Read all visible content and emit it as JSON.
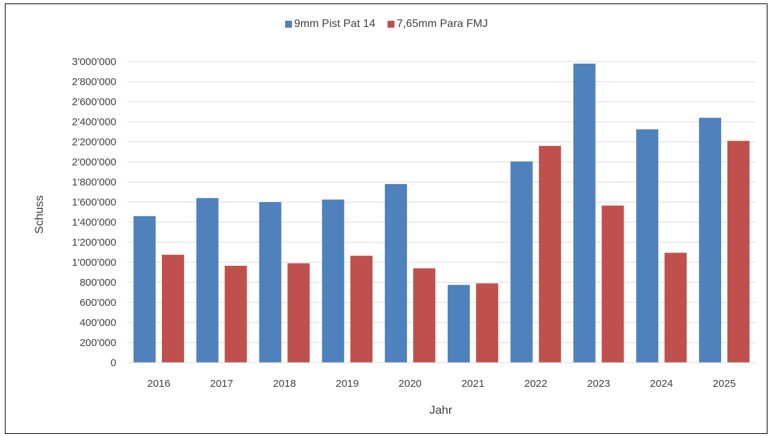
{
  "chart_data": {
    "type": "bar",
    "categories": [
      "2016",
      "2017",
      "2018",
      "2019",
      "2020",
      "2021",
      "2022",
      "2023",
      "2024",
      "2025"
    ],
    "series": [
      {
        "name": "9mm Pist Pat 14",
        "color": "#4f81bd",
        "values": [
          1460000,
          1640000,
          1600000,
          1625000,
          1780000,
          775000,
          2005000,
          2980000,
          2325000,
          2440000
        ]
      },
      {
        "name": "7,65mm Para FMJ",
        "color": "#c0504d",
        "values": [
          1075000,
          965000,
          990000,
          1065000,
          940000,
          790000,
          2160000,
          1565000,
          1095000,
          2210000
        ]
      }
    ],
    "title": "",
    "xlabel": "Jahr",
    "ylabel": "Schuss",
    "ylim": [
      0,
      3000000
    ],
    "yticks": [
      0,
      200000,
      400000,
      600000,
      800000,
      1000000,
      1200000,
      1400000,
      1600000,
      1800000,
      2000000,
      2200000,
      2400000,
      2600000,
      2800000,
      3000000
    ],
    "ytick_labels": [
      "0",
      "200'000",
      "400'000",
      "600'000",
      "800'000",
      "1'000'000",
      "1'200'000",
      "1'400'000",
      "1'600'000",
      "1'800'000",
      "2'000'000",
      "2'200'000",
      "2'400'000",
      "2'600'000",
      "2'800'000",
      "3'000'000"
    ],
    "grid": true,
    "legend_position": "top-center"
  }
}
